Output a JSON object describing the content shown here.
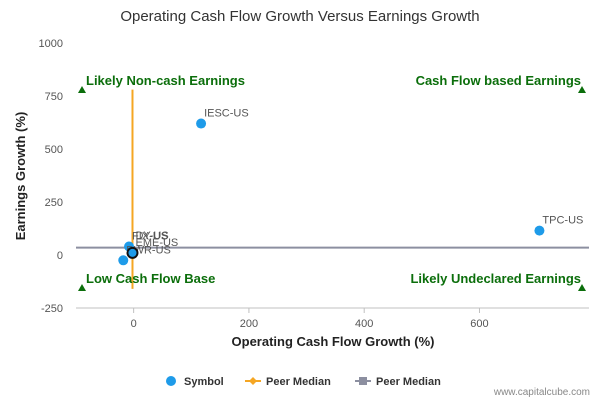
{
  "chart_data": {
    "type": "scatter",
    "title": "Operating Cash Flow Growth Versus Earnings Growth",
    "xlabel": "Operating Cash Flow Growth (%)",
    "ylabel": "Earnings Growth (%)",
    "xlim": [
      -100,
      790
    ],
    "ylim": [
      -250,
      1000
    ],
    "xticks": [
      0,
      200,
      400,
      600
    ],
    "yticks": [
      -250,
      0,
      250,
      500,
      750,
      1000
    ],
    "grid": false,
    "series": [
      {
        "name": "Symbol",
        "color": "#1e9be9",
        "points": [
          {
            "label": "IESC-US",
            "x": 117,
            "y": 620
          },
          {
            "label": "TPC-US",
            "x": 704,
            "y": 115
          },
          {
            "label": "FIX-US",
            "x": -8,
            "y": 40
          },
          {
            "label": "PWR-US",
            "x": -18,
            "y": -25
          },
          {
            "label": "EME-US",
            "x": -2,
            "y": 10
          }
        ]
      }
    ],
    "peer_median": {
      "x": {
        "name": "Peer Median",
        "value": -2,
        "color": "#f5a623",
        "ymin": -160,
        "ymax": 780
      },
      "y": {
        "name": "Peer Median",
        "value": 35,
        "color": "#8c8fa0"
      }
    },
    "highlight": {
      "label": "DY-US",
      "x": -2,
      "y": 10
    },
    "quadrant_labels": {
      "top_left": "Likely Non-cash Earnings",
      "top_right": "Cash Flow based Earnings",
      "bottom_left": "Low Cash Flow Base",
      "bottom_right": "Likely Undeclared Earnings"
    },
    "legend": [
      {
        "name": "Symbol",
        "kind": "circle",
        "color": "#1e9be9"
      },
      {
        "name": "Peer Median",
        "kind": "line-diamond",
        "color": "#f5a623"
      },
      {
        "name": "Peer Median",
        "kind": "line-square",
        "color": "#8c8fa0"
      }
    ]
  },
  "credit": "www.capitalcube.com"
}
